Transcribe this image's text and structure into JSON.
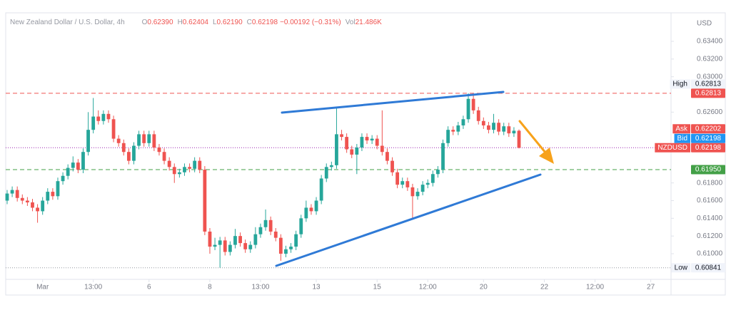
{
  "header": {
    "title": "New Zealand Dollar / U.S. Dollar, 4h",
    "quote": [
      {
        "key": "O",
        "value": "0.62390"
      },
      {
        "key": "H",
        "value": "0.62404"
      },
      {
        "key": "L",
        "value": "0.62190"
      },
      {
        "key": "C",
        "value": "0.62198"
      }
    ],
    "change": "−0.00192 (−0.31%)",
    "volume_key": "Vol",
    "volume": "21.486K"
  },
  "chart_data": {
    "type": "candlestick",
    "currency": "USD",
    "up_color": "#26a69a",
    "down_color": "#ef5350",
    "open": [
      0.616,
      0.6168,
      0.6172,
      0.6163,
      0.616,
      0.6158,
      0.6152,
      0.6148,
      0.616,
      0.617,
      0.6165,
      0.6182,
      0.6188,
      0.6197,
      0.6203,
      0.6195,
      0.6215,
      0.624,
      0.6255,
      0.625,
      0.6258,
      0.6252,
      0.623,
      0.6225,
      0.6215,
      0.6205,
      0.6222,
      0.6235,
      0.6225,
      0.6235,
      0.622,
      0.6215,
      0.6205,
      0.6198,
      0.619,
      0.6192,
      0.6198,
      0.6196,
      0.6205,
      0.6195,
      0.6125,
      0.6108,
      0.611,
      0.6115,
      0.6102,
      0.611,
      0.612,
      0.6112,
      0.6105,
      0.611,
      0.6122,
      0.613,
      0.6138,
      0.6125,
      0.6118,
      0.61,
      0.6105,
      0.6108,
      0.6122,
      0.614,
      0.6152,
      0.6148,
      0.616,
      0.6185,
      0.6198,
      0.62,
      0.6235,
      0.6232,
      0.6218,
      0.6212,
      0.622,
      0.6232,
      0.6228,
      0.623,
      0.6222,
      0.6215,
      0.6205,
      0.6192,
      0.6178,
      0.6182,
      0.6175,
      0.6165,
      0.617,
      0.6178,
      0.618,
      0.619,
      0.6195,
      0.6225,
      0.624,
      0.6238,
      0.6245,
      0.6252,
      0.6275,
      0.6262,
      0.625,
      0.6245,
      0.624,
      0.6248,
      0.6238,
      0.6244,
      0.6236,
      0.6239
    ],
    "high": [
      0.6172,
      0.6176,
      0.6176,
      0.6167,
      0.6164,
      0.6162,
      0.6156,
      0.6164,
      0.6174,
      0.6174,
      0.6186,
      0.6192,
      0.6201,
      0.621,
      0.6207,
      0.6219,
      0.626,
      0.6276,
      0.6262,
      0.6262,
      0.6262,
      0.6256,
      0.6234,
      0.6229,
      0.6219,
      0.6226,
      0.6239,
      0.6239,
      0.6239,
      0.6239,
      0.6224,
      0.6219,
      0.6209,
      0.6202,
      0.6196,
      0.6202,
      0.6202,
      0.6209,
      0.6209,
      0.6199,
      0.6129,
      0.6118,
      0.6119,
      0.6119,
      0.6114,
      0.6128,
      0.6124,
      0.6116,
      0.6114,
      0.613,
      0.6134,
      0.615,
      0.6142,
      0.6129,
      0.6122,
      0.6109,
      0.6112,
      0.6126,
      0.6144,
      0.616,
      0.6156,
      0.6164,
      0.6189,
      0.6202,
      0.6204,
      0.6266,
      0.624,
      0.6236,
      0.6222,
      0.6224,
      0.6236,
      0.6236,
      0.6234,
      0.6234,
      0.6262,
      0.6219,
      0.6209,
      0.6196,
      0.6186,
      0.6186,
      0.6179,
      0.6174,
      0.6182,
      0.6184,
      0.6194,
      0.6199,
      0.6229,
      0.6244,
      0.6244,
      0.6249,
      0.6256,
      0.62813,
      0.6279,
      0.6266,
      0.6254,
      0.6249,
      0.6258,
      0.6252,
      0.6248,
      0.6248,
      0.6243,
      0.62404
    ],
    "low": [
      0.6156,
      0.6164,
      0.6159,
      0.6156,
      0.6154,
      0.6148,
      0.6135,
      0.6144,
      0.6156,
      0.6161,
      0.6161,
      0.6178,
      0.6184,
      0.6193,
      0.6191,
      0.6191,
      0.6211,
      0.6236,
      0.6246,
      0.6246,
      0.6248,
      0.6226,
      0.6221,
      0.6211,
      0.6201,
      0.6201,
      0.6218,
      0.6221,
      0.6221,
      0.6216,
      0.6211,
      0.6201,
      0.6194,
      0.618,
      0.6186,
      0.6188,
      0.6192,
      0.6192,
      0.6191,
      0.6121,
      0.61,
      0.6104,
      0.60841,
      0.6098,
      0.6098,
      0.6106,
      0.6108,
      0.6101,
      0.6101,
      0.6106,
      0.6118,
      0.6126,
      0.6121,
      0.6114,
      0.6092,
      0.6096,
      0.6101,
      0.6104,
      0.6118,
      0.6136,
      0.6144,
      0.6144,
      0.6156,
      0.6181,
      0.6194,
      0.6196,
      0.6228,
      0.6214,
      0.6208,
      0.619,
      0.6216,
      0.6224,
      0.6224,
      0.6218,
      0.6211,
      0.6201,
      0.6188,
      0.6174,
      0.6174,
      0.6171,
      0.614,
      0.6161,
      0.6166,
      0.6174,
      0.6176,
      0.6186,
      0.6191,
      0.6221,
      0.6234,
      0.6234,
      0.6241,
      0.6248,
      0.6258,
      0.6246,
      0.6241,
      0.6236,
      0.6236,
      0.6234,
      0.6234,
      0.6232,
      0.6232,
      0.6219
    ],
    "close": [
      0.6168,
      0.6172,
      0.6163,
      0.616,
      0.6158,
      0.6152,
      0.6148,
      0.616,
      0.617,
      0.6165,
      0.6182,
      0.6188,
      0.6197,
      0.6203,
      0.6195,
      0.6215,
      0.624,
      0.6255,
      0.625,
      0.6258,
      0.6252,
      0.623,
      0.6225,
      0.6215,
      0.6205,
      0.6222,
      0.6235,
      0.6225,
      0.6235,
      0.622,
      0.6215,
      0.6205,
      0.6198,
      0.619,
      0.6192,
      0.6198,
      0.6196,
      0.6205,
      0.6195,
      0.6125,
      0.6108,
      0.611,
      0.6115,
      0.6102,
      0.611,
      0.612,
      0.6112,
      0.6105,
      0.611,
      0.6122,
      0.613,
      0.6138,
      0.6125,
      0.6118,
      0.61,
      0.6105,
      0.6108,
      0.6122,
      0.614,
      0.6152,
      0.6148,
      0.616,
      0.6185,
      0.6198,
      0.62,
      0.6235,
      0.6232,
      0.6218,
      0.6212,
      0.622,
      0.6232,
      0.6228,
      0.623,
      0.6222,
      0.6215,
      0.6205,
      0.6192,
      0.6178,
      0.6182,
      0.6175,
      0.6165,
      0.617,
      0.6178,
      0.618,
      0.619,
      0.6195,
      0.6225,
      0.624,
      0.6238,
      0.6245,
      0.6252,
      0.6275,
      0.6262,
      0.625,
      0.6245,
      0.624,
      0.6248,
      0.6238,
      0.6244,
      0.6236,
      0.6239,
      0.62198
    ],
    "xlim": [
      -0.28,
      131
    ],
    "xticks": [
      {
        "value": 7,
        "label": "Mar"
      },
      {
        "value": 17,
        "label": "13:00"
      },
      {
        "value": 28,
        "label": "6"
      },
      {
        "value": 40,
        "label": "8"
      },
      {
        "value": 50,
        "label": "13:00"
      },
      {
        "value": 61,
        "label": "13"
      },
      {
        "value": 73,
        "label": "15"
      },
      {
        "value": 83,
        "label": "12:00"
      },
      {
        "value": 94,
        "label": "20"
      },
      {
        "value": 106,
        "label": "22"
      },
      {
        "value": 116,
        "label": "12:00"
      },
      {
        "value": 127,
        "label": "27"
      }
    ],
    "ylim": [
      0.6071,
      0.63674
    ],
    "yticks": [
      {
        "value": 0.634,
        "label": "0.63400"
      },
      {
        "value": 0.632,
        "label": "0.63200"
      },
      {
        "value": 0.63,
        "label": "0.63000"
      },
      {
        "value": 0.626,
        "label": "0.62600"
      },
      {
        "value": 0.618,
        "label": "0.61800"
      },
      {
        "value": 0.616,
        "label": "0.61600"
      },
      {
        "value": 0.614,
        "label": "0.61400"
      },
      {
        "value": 0.612,
        "label": "0.61200"
      },
      {
        "value": 0.61,
        "label": "0.61000"
      }
    ],
    "price_labels": [
      {
        "name": "High",
        "value": 0.62813,
        "label": "0.62813",
        "color": "#f0f3fa",
        "text_color": "#131722"
      },
      {
        "value": 0.62813,
        "label": "0.62813",
        "color": "#ef5350",
        "text_color": "#ffffff",
        "line": "dashed",
        "line_color": "#ef5350"
      },
      {
        "name": "Ask",
        "value": 0.62202,
        "label": "0.62202",
        "color": "#ef5350",
        "text_color": "#ffffff"
      },
      {
        "name": "Bid",
        "value": 0.62198,
        "label": "0.62198",
        "color": "#2196f3",
        "text_color": "#ffffff"
      },
      {
        "name": "NZDUSD",
        "value": 0.62198,
        "label": "0.62198",
        "color": "#ef5350",
        "text_color": "#ffffff",
        "line": "dotted",
        "line_color": "#9c27b0"
      },
      {
        "value": 0.6195,
        "label": "0.61950",
        "color": "#43a047",
        "text_color": "#ffffff",
        "line": "dashed",
        "line_color": "#43a047"
      },
      {
        "name": "Low",
        "value": 0.60841,
        "label": "0.60841",
        "color": "#f0f3fa",
        "text_color": "#131722",
        "line": "dotted",
        "line_color": "#9598a1"
      }
    ]
  }
}
